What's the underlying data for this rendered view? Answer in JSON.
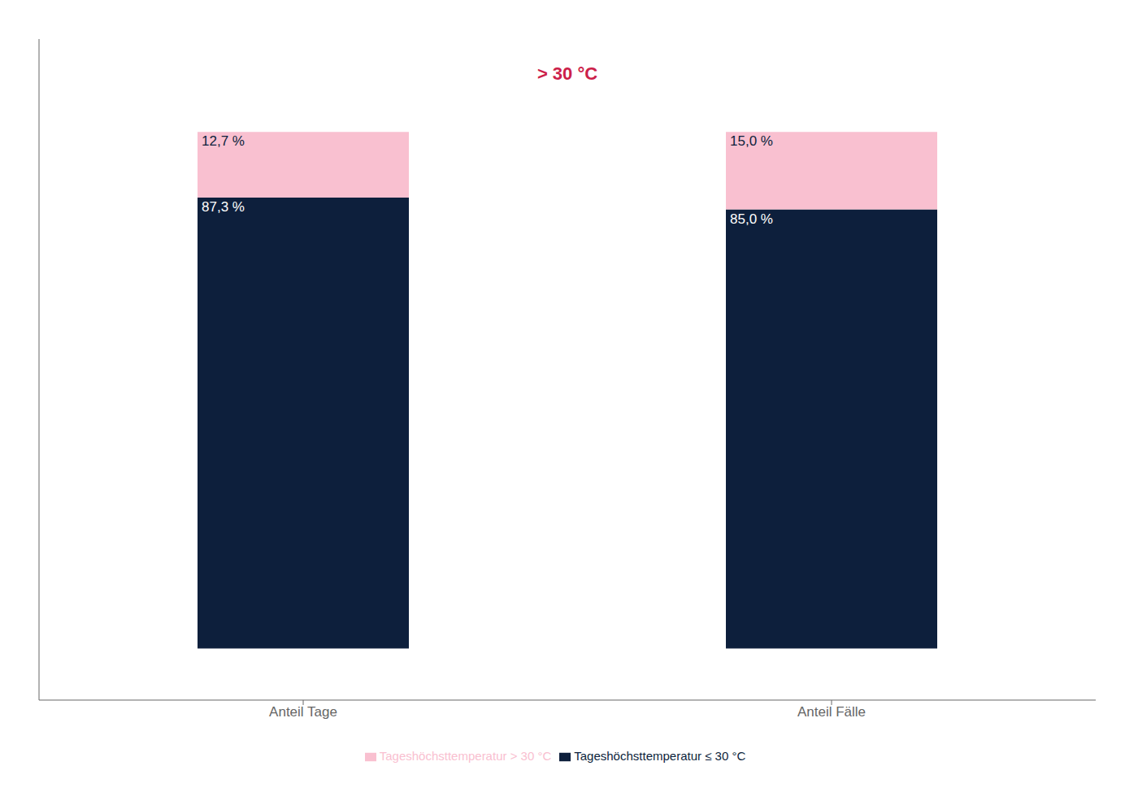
{
  "chart_data": {
    "type": "bar",
    "stacked": true,
    "categories": [
      "Anteil Tage",
      "Anteil Fälle"
    ],
    "series": [
      {
        "name": "Tageshöchsttemperatur ≤ 30 °C",
        "color": "#0d1f3c",
        "values": [
          87.3,
          85.0
        ],
        "value_labels": [
          "87,3 %",
          "85,0 %"
        ]
      },
      {
        "name": "Tageshöchsttemperatur > 30 °C",
        "color": "#f9c0d0",
        "values": [
          12.7,
          15.0
        ],
        "value_labels": [
          "12,7 %",
          "15,0 %"
        ]
      }
    ],
    "ylim": [
      -10,
      118
    ],
    "data_labels": true,
    "tick_labels": "x",
    "legend": "bottom",
    "annotations": [
      {
        "text": "> 30 °C",
        "color": "#cc1f4a"
      }
    ]
  }
}
